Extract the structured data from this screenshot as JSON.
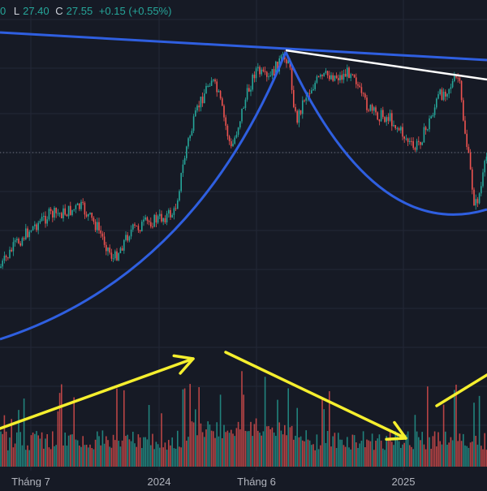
{
  "legend": {
    "open_fragment": "0",
    "low_key": "L",
    "low_value": "27.40",
    "close_key": "C",
    "close_value": "27.55",
    "change": "+0.15 (+0.55%)"
  },
  "colors": {
    "background": "#161a25",
    "grid": "#232836",
    "candle_up": "#26a69a",
    "candle_down": "#ef5350",
    "trend_blue": "#2f5fe0",
    "trend_white": "#ffffff",
    "arrow_yellow": "#f5ef2e",
    "price_line": "#787b86"
  },
  "chart_data": {
    "type": "candlestick",
    "x_tick_labels": [
      "Tháng 7",
      "2024",
      "Tháng 6",
      "2025"
    ],
    "last_close": 27.55,
    "price_series_approx": [
      {
        "x": "Tháng 5 2023",
        "close": 22.5
      },
      {
        "x": "Tháng 7",
        "close": 23.5
      },
      {
        "x": "Tháng 8",
        "close": 24.3
      },
      {
        "x": "Tháng 9",
        "close": 25.3
      },
      {
        "x": "Tháng 10",
        "close": 25.2
      },
      {
        "x": "Tháng 11",
        "close": 23.2
      },
      {
        "x": "Tháng 12",
        "close": 24.6
      },
      {
        "x": "2024",
        "close": 25.4
      },
      {
        "x": "Tháng 2",
        "close": 29.6
      },
      {
        "x": "Tháng 3",
        "close": 31.6
      },
      {
        "x": "Tháng 4",
        "close": 30.0
      },
      {
        "x": "Tháng 5",
        "close": 32.6
      },
      {
        "x": "Tháng 6",
        "close": 33.8
      },
      {
        "x": "Tháng 7",
        "close": 31.7
      },
      {
        "x": "Tháng 8",
        "close": 32.9
      },
      {
        "x": "Tháng 9",
        "close": 33.0
      },
      {
        "x": "Tháng 10",
        "close": 32.0
      },
      {
        "x": "Tháng 11",
        "close": 31.2
      },
      {
        "x": "Tháng 12",
        "close": 30.0
      },
      {
        "x": "2025",
        "close": 31.8
      },
      {
        "x": "Tháng 2",
        "close": 32.2
      },
      {
        "x": "Tháng 3",
        "close": 30.8
      },
      {
        "x": "Tháng 4",
        "close": 27.5
      }
    ],
    "grid": true,
    "annotations": [
      "blue descending trendline",
      "white resistance line",
      "blue cup arcs",
      "yellow volume trend arrows"
    ]
  }
}
